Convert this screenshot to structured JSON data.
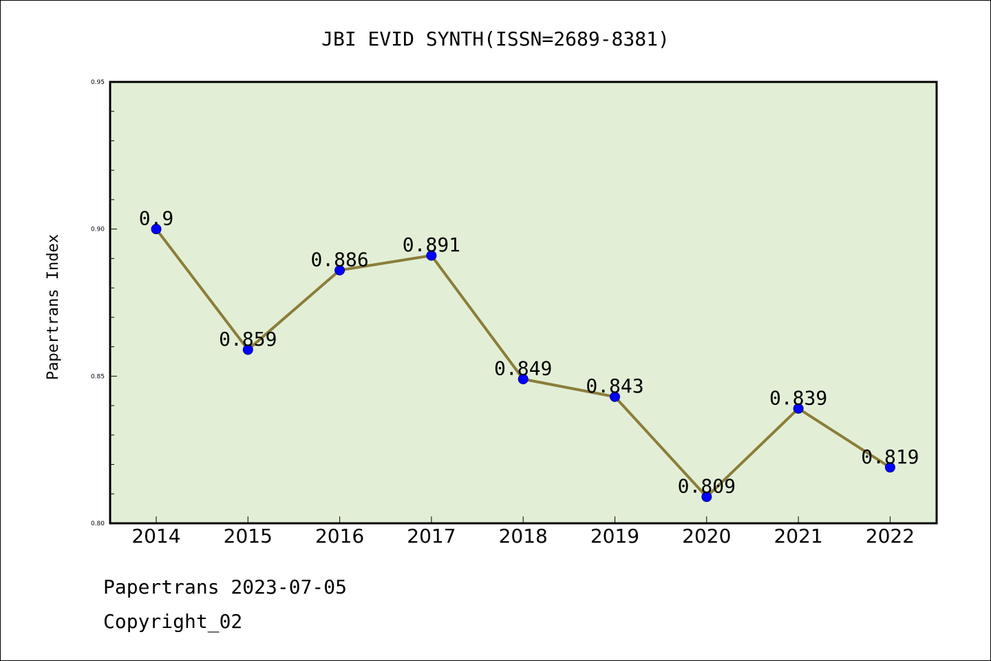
{
  "chart_data": {
    "type": "line",
    "title": "JBI EVID SYNTH(ISSN=2689-8381)",
    "xlabel": "",
    "ylabel": "Papertrans Index",
    "categories": [
      "2014",
      "2015",
      "2016",
      "2017",
      "2018",
      "2019",
      "2020",
      "2021",
      "2022"
    ],
    "values": [
      0.9,
      0.859,
      0.886,
      0.891,
      0.849,
      0.843,
      0.809,
      0.839,
      0.819
    ],
    "data_labels": [
      "0.9",
      "0.859",
      "0.886",
      "0.891",
      "0.849",
      "0.843",
      "0.809",
      "0.839",
      "0.819"
    ],
    "ylim": [
      0.8,
      0.95
    ],
    "yticks": [
      "0.80",
      "0.85",
      "0.90",
      "0.95"
    ],
    "grid": false,
    "colors": {
      "line": "#8b7d3a",
      "marker": "#0000ff",
      "plot_background": "#e2efd6"
    }
  },
  "footer": {
    "date_line": "Papertrans 2023-07-05",
    "copyright": "Copyright_02"
  }
}
